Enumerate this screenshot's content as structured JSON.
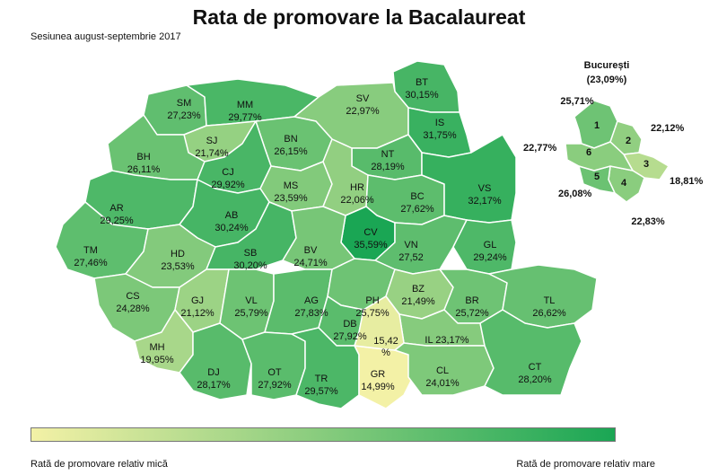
{
  "title": "Rata de promovare la Bacalaureat",
  "subtitle": "Sesiunea august-septembrie 2017",
  "colors": {
    "low": "#f3f1a6",
    "high": "#1aa654",
    "border": "#ffffff"
  },
  "counties": [
    {
      "code": "SM",
      "value": "27,23%",
      "rate": 27.23
    },
    {
      "code": "MM",
      "value": "29,77%",
      "rate": 29.77
    },
    {
      "code": "BT",
      "value": "30,15%",
      "rate": 30.15
    },
    {
      "code": "SV",
      "value": "22,97%",
      "rate": 22.97
    },
    {
      "code": "SJ",
      "value": "21,74%",
      "rate": 21.74
    },
    {
      "code": "BN",
      "value": "26,15%",
      "rate": 26.15
    },
    {
      "code": "IS",
      "value": "31,75%",
      "rate": 31.75
    },
    {
      "code": "BH",
      "value": "26,11%",
      "rate": 26.11
    },
    {
      "code": "CJ",
      "value": "29,92%",
      "rate": 29.92
    },
    {
      "code": "NT",
      "value": "28,19%",
      "rate": 28.19
    },
    {
      "code": "MS",
      "value": "23,59%",
      "rate": 23.59
    },
    {
      "code": "HR",
      "value": "22,06%",
      "rate": 22.06
    },
    {
      "code": "BC",
      "value": "27,62%",
      "rate": 27.62
    },
    {
      "code": "VS",
      "value": "32,17%",
      "rate": 32.17
    },
    {
      "code": "AR",
      "value": "29,25%",
      "rate": 29.25
    },
    {
      "code": "AB",
      "value": "30,24%",
      "rate": 30.24
    },
    {
      "code": "CV",
      "value": "35,59%",
      "rate": 35.59
    },
    {
      "code": "TM",
      "value": "27,46%",
      "rate": 27.46
    },
    {
      "code": "HD",
      "value": "23,53%",
      "rate": 23.53
    },
    {
      "code": "SB",
      "value": "30,20%",
      "rate": 30.2
    },
    {
      "code": "BV",
      "value": "24,71%",
      "rate": 24.71
    },
    {
      "code": "VN",
      "value": "27,52",
      "rate": 27.52
    },
    {
      "code": "GL",
      "value": "29,24%",
      "rate": 29.24
    },
    {
      "code": "CS",
      "value": "24,28%",
      "rate": 24.28
    },
    {
      "code": "GJ",
      "value": "21,12%",
      "rate": 21.12
    },
    {
      "code": "VL",
      "value": "25,79%",
      "rate": 25.79
    },
    {
      "code": "AG",
      "value": "27,83%",
      "rate": 27.83
    },
    {
      "code": "PH",
      "value": "25,75%",
      "rate": 25.75
    },
    {
      "code": "BZ",
      "value": "21,49%",
      "rate": 21.49
    },
    {
      "code": "BR",
      "value": "25,72%",
      "rate": 25.72
    },
    {
      "code": "TL",
      "value": "26,62%",
      "rate": 26.62
    },
    {
      "code": "MH",
      "value": "19,95%",
      "rate": 19.95
    },
    {
      "code": "DB",
      "value": "27,92%",
      "rate": 27.92
    },
    {
      "code": "IL",
      "value": "23,17%",
      "rate": 23.17
    },
    {
      "code": "DJ",
      "value": "28,17%",
      "rate": 28.17
    },
    {
      "code": "OT",
      "value": "27,92%",
      "rate": 27.92
    },
    {
      "code": "TR",
      "value": "29,57%",
      "rate": 29.57
    },
    {
      "code": "GR",
      "value": "14,99%",
      "rate": 14.99
    },
    {
      "code": "CL",
      "value": "24,01%",
      "rate": 24.01
    },
    {
      "code": "CT",
      "value": "28,20%",
      "rate": 28.2
    },
    {
      "code": "IF",
      "value": "15,42 %",
      "rate": 15.42
    }
  ],
  "bucharest": {
    "title": "București",
    "overall": "(23,09%)",
    "sectors": [
      {
        "code": "1",
        "value": "25,71%",
        "rate": 25.71
      },
      {
        "code": "2",
        "value": "22,12%",
        "rate": 22.12
      },
      {
        "code": "3",
        "value": "18,81%",
        "rate": 18.81
      },
      {
        "code": "4",
        "value": "22,83%",
        "rate": 22.83
      },
      {
        "code": "5",
        "value": "26,08%",
        "rate": 26.08
      },
      {
        "code": "6",
        "value": "22,77%",
        "rate": 22.77
      }
    ]
  },
  "legend": {
    "low_label": "Rată de promovare relativ mică",
    "high_label": "Rată de promovare relativ mare",
    "min_rate": 14.99,
    "max_rate": 35.59
  }
}
